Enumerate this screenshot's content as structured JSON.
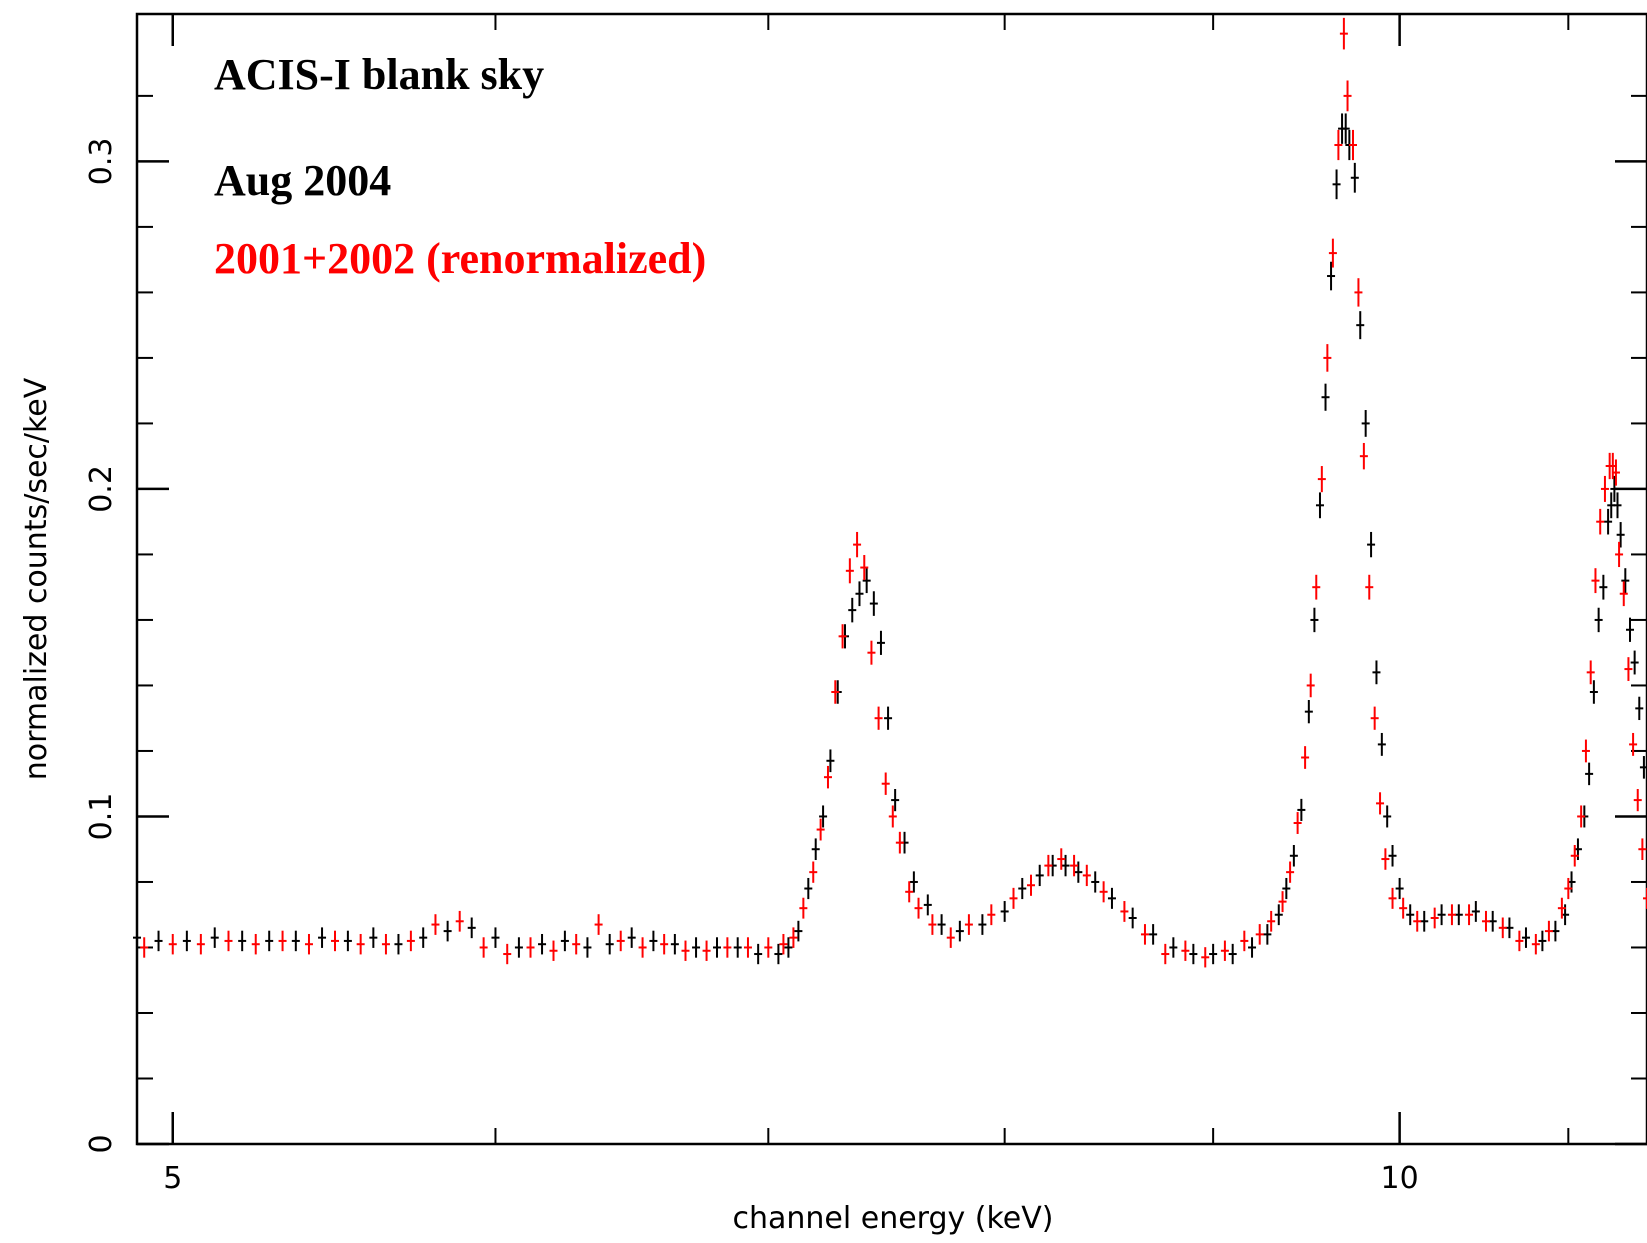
{
  "chart_data": {
    "type": "scatter",
    "title": "",
    "xlabel": "channel energy (keV)",
    "ylabel": "normalized counts/sec/keV",
    "x_scale": "log",
    "xlim": [
      4.9,
      11.5
    ],
    "ylim": [
      0,
      0.345
    ],
    "x_ticks_major": [
      {
        "value": 5,
        "label": "5"
      },
      {
        "value": 10,
        "label": "10"
      }
    ],
    "x_ticks_minor": [
      6,
      7,
      8,
      9,
      11
    ],
    "y_ticks_major": [
      {
        "value": 0,
        "label": "0"
      },
      {
        "value": 0.1,
        "label": "0.1"
      },
      {
        "value": 0.2,
        "label": "0.2"
      },
      {
        "value": 0.3,
        "label": "0.3"
      }
    ],
    "y_ticks_minor": [
      0.02,
      0.04,
      0.06,
      0.08,
      0.12,
      0.14,
      0.16,
      0.18,
      0.22,
      0.24,
      0.26,
      0.28,
      0.32
    ],
    "grid": false,
    "annotations": [
      {
        "text": "ACIS-I blank sky",
        "color": "#000000"
      },
      {
        "text": "Aug 2004",
        "color": "#000000"
      },
      {
        "text": "2001+2002 (renormalized)",
        "color": "#ff0000"
      }
    ],
    "series": [
      {
        "color": "#000000",
        "x_bin_halfwidth": 0.01,
        "points": [
          [
            4.9,
            0.063
          ],
          [
            4.96,
            0.062
          ],
          [
            5.04,
            0.062
          ],
          [
            5.12,
            0.063
          ],
          [
            5.2,
            0.062
          ],
          [
            5.28,
            0.062
          ],
          [
            5.36,
            0.062
          ],
          [
            5.44,
            0.063
          ],
          [
            5.52,
            0.062
          ],
          [
            5.6,
            0.063
          ],
          [
            5.68,
            0.061
          ],
          [
            5.76,
            0.063
          ],
          [
            5.84,
            0.065
          ],
          [
            5.92,
            0.066
          ],
          [
            6.0,
            0.063
          ],
          [
            6.08,
            0.06
          ],
          [
            6.16,
            0.061
          ],
          [
            6.24,
            0.062
          ],
          [
            6.32,
            0.06
          ],
          [
            6.4,
            0.061
          ],
          [
            6.48,
            0.063
          ],
          [
            6.56,
            0.062
          ],
          [
            6.64,
            0.061
          ],
          [
            6.72,
            0.06
          ],
          [
            6.8,
            0.06
          ],
          [
            6.88,
            0.06
          ],
          [
            6.96,
            0.058
          ],
          [
            7.04,
            0.058
          ],
          [
            7.08,
            0.06
          ],
          [
            7.12,
            0.065
          ],
          [
            7.16,
            0.078
          ],
          [
            7.19,
            0.09
          ],
          [
            7.22,
            0.1
          ],
          [
            7.25,
            0.117
          ],
          [
            7.28,
            0.138
          ],
          [
            7.31,
            0.155
          ],
          [
            7.34,
            0.163
          ],
          [
            7.37,
            0.168
          ],
          [
            7.4,
            0.172
          ],
          [
            7.43,
            0.165
          ],
          [
            7.46,
            0.153
          ],
          [
            7.49,
            0.13
          ],
          [
            7.52,
            0.105
          ],
          [
            7.56,
            0.092
          ],
          [
            7.6,
            0.08
          ],
          [
            7.66,
            0.073
          ],
          [
            7.72,
            0.067
          ],
          [
            7.8,
            0.065
          ],
          [
            7.9,
            0.067
          ],
          [
            8.0,
            0.071
          ],
          [
            8.08,
            0.078
          ],
          [
            8.16,
            0.082
          ],
          [
            8.22,
            0.085
          ],
          [
            8.28,
            0.085
          ],
          [
            8.34,
            0.083
          ],
          [
            8.42,
            0.08
          ],
          [
            8.5,
            0.075
          ],
          [
            8.6,
            0.069
          ],
          [
            8.7,
            0.064
          ],
          [
            8.8,
            0.06
          ],
          [
            8.9,
            0.058
          ],
          [
            9.0,
            0.058
          ],
          [
            9.1,
            0.058
          ],
          [
            9.2,
            0.06
          ],
          [
            9.28,
            0.064
          ],
          [
            9.34,
            0.07
          ],
          [
            9.38,
            0.078
          ],
          [
            9.42,
            0.088
          ],
          [
            9.46,
            0.102
          ],
          [
            9.5,
            0.132
          ],
          [
            9.53,
            0.16
          ],
          [
            9.56,
            0.195
          ],
          [
            9.59,
            0.228
          ],
          [
            9.62,
            0.265
          ],
          [
            9.65,
            0.293
          ],
          [
            9.68,
            0.31
          ],
          [
            9.7,
            0.31
          ],
          [
            9.72,
            0.305
          ],
          [
            9.75,
            0.295
          ],
          [
            9.78,
            0.25
          ],
          [
            9.81,
            0.22
          ],
          [
            9.84,
            0.183
          ],
          [
            9.87,
            0.144
          ],
          [
            9.9,
            0.122
          ],
          [
            9.93,
            0.1
          ],
          [
            9.96,
            0.088
          ],
          [
            10.0,
            0.078
          ],
          [
            10.06,
            0.07
          ],
          [
            10.14,
            0.068
          ],
          [
            10.24,
            0.07
          ],
          [
            10.34,
            0.07
          ],
          [
            10.44,
            0.071
          ],
          [
            10.54,
            0.068
          ],
          [
            10.64,
            0.066
          ],
          [
            10.74,
            0.063
          ],
          [
            10.84,
            0.062
          ],
          [
            10.92,
            0.065
          ],
          [
            10.98,
            0.07
          ],
          [
            11.02,
            0.08
          ],
          [
            11.06,
            0.09
          ],
          [
            11.1,
            0.1
          ],
          [
            11.13,
            0.113
          ],
          [
            11.16,
            0.138
          ],
          [
            11.19,
            0.16
          ],
          [
            11.22,
            0.17
          ],
          [
            11.25,
            0.19
          ],
          [
            11.27,
            0.195
          ],
          [
            11.29,
            0.2
          ],
          [
            11.31,
            0.195
          ],
          [
            11.33,
            0.186
          ],
          [
            11.36,
            0.172
          ],
          [
            11.39,
            0.157
          ],
          [
            11.42,
            0.147
          ],
          [
            11.45,
            0.133
          ],
          [
            11.48,
            0.115
          ],
          [
            11.5,
            0.1
          ]
        ]
      },
      {
        "color": "#ff0000",
        "x_bin_halfwidth": 0.01,
        "points": [
          [
            4.92,
            0.06
          ],
          [
            5.0,
            0.061
          ],
          [
            5.08,
            0.061
          ],
          [
            5.16,
            0.062
          ],
          [
            5.24,
            0.061
          ],
          [
            5.32,
            0.062
          ],
          [
            5.4,
            0.061
          ],
          [
            5.48,
            0.062
          ],
          [
            5.56,
            0.061
          ],
          [
            5.64,
            0.061
          ],
          [
            5.72,
            0.062
          ],
          [
            5.8,
            0.067
          ],
          [
            5.88,
            0.068
          ],
          [
            5.96,
            0.06
          ],
          [
            6.04,
            0.058
          ],
          [
            6.12,
            0.06
          ],
          [
            6.2,
            0.059
          ],
          [
            6.28,
            0.061
          ],
          [
            6.36,
            0.067
          ],
          [
            6.44,
            0.062
          ],
          [
            6.52,
            0.06
          ],
          [
            6.6,
            0.061
          ],
          [
            6.68,
            0.059
          ],
          [
            6.76,
            0.059
          ],
          [
            6.84,
            0.06
          ],
          [
            6.92,
            0.06
          ],
          [
            7.0,
            0.06
          ],
          [
            7.06,
            0.061
          ],
          [
            7.1,
            0.063
          ],
          [
            7.14,
            0.072
          ],
          [
            7.18,
            0.083
          ],
          [
            7.21,
            0.096
          ],
          [
            7.24,
            0.112
          ],
          [
            7.27,
            0.138
          ],
          [
            7.3,
            0.155
          ],
          [
            7.33,
            0.175
          ],
          [
            7.36,
            0.183
          ],
          [
            7.39,
            0.176
          ],
          [
            7.42,
            0.15
          ],
          [
            7.45,
            0.13
          ],
          [
            7.48,
            0.11
          ],
          [
            7.51,
            0.1
          ],
          [
            7.54,
            0.092
          ],
          [
            7.58,
            0.077
          ],
          [
            7.62,
            0.072
          ],
          [
            7.68,
            0.067
          ],
          [
            7.76,
            0.063
          ],
          [
            7.84,
            0.067
          ],
          [
            7.94,
            0.07
          ],
          [
            8.04,
            0.075
          ],
          [
            8.12,
            0.079
          ],
          [
            8.2,
            0.085
          ],
          [
            8.26,
            0.087
          ],
          [
            8.32,
            0.085
          ],
          [
            8.38,
            0.082
          ],
          [
            8.46,
            0.077
          ],
          [
            8.56,
            0.071
          ],
          [
            8.66,
            0.064
          ],
          [
            8.76,
            0.058
          ],
          [
            8.86,
            0.059
          ],
          [
            8.96,
            0.057
          ],
          [
            9.06,
            0.059
          ],
          [
            9.16,
            0.062
          ],
          [
            9.24,
            0.064
          ],
          [
            9.3,
            0.068
          ],
          [
            9.36,
            0.074
          ],
          [
            9.4,
            0.083
          ],
          [
            9.44,
            0.098
          ],
          [
            9.48,
            0.118
          ],
          [
            9.51,
            0.14
          ],
          [
            9.54,
            0.17
          ],
          [
            9.57,
            0.203
          ],
          [
            9.6,
            0.24
          ],
          [
            9.63,
            0.272
          ],
          [
            9.66,
            0.305
          ],
          [
            9.69,
            0.339
          ],
          [
            9.71,
            0.32
          ],
          [
            9.74,
            0.305
          ],
          [
            9.77,
            0.26
          ],
          [
            9.8,
            0.21
          ],
          [
            9.83,
            0.17
          ],
          [
            9.86,
            0.13
          ],
          [
            9.89,
            0.104
          ],
          [
            9.92,
            0.087
          ],
          [
            9.96,
            0.075
          ],
          [
            10.02,
            0.072
          ],
          [
            10.1,
            0.068
          ],
          [
            10.2,
            0.069
          ],
          [
            10.3,
            0.07
          ],
          [
            10.4,
            0.07
          ],
          [
            10.5,
            0.068
          ],
          [
            10.6,
            0.066
          ],
          [
            10.7,
            0.062
          ],
          [
            10.8,
            0.061
          ],
          [
            10.88,
            0.065
          ],
          [
            10.96,
            0.072
          ],
          [
            11.0,
            0.078
          ],
          [
            11.04,
            0.088
          ],
          [
            11.08,
            0.1
          ],
          [
            11.11,
            0.12
          ],
          [
            11.14,
            0.144
          ],
          [
            11.17,
            0.172
          ],
          [
            11.2,
            0.19
          ],
          [
            11.23,
            0.2
          ],
          [
            11.26,
            0.207
          ],
          [
            11.28,
            0.207
          ],
          [
            11.3,
            0.205
          ],
          [
            11.32,
            0.18
          ],
          [
            11.35,
            0.168
          ],
          [
            11.38,
            0.145
          ],
          [
            11.41,
            0.122
          ],
          [
            11.44,
            0.105
          ],
          [
            11.47,
            0.09
          ],
          [
            11.5,
            0.075
          ]
        ]
      }
    ]
  }
}
